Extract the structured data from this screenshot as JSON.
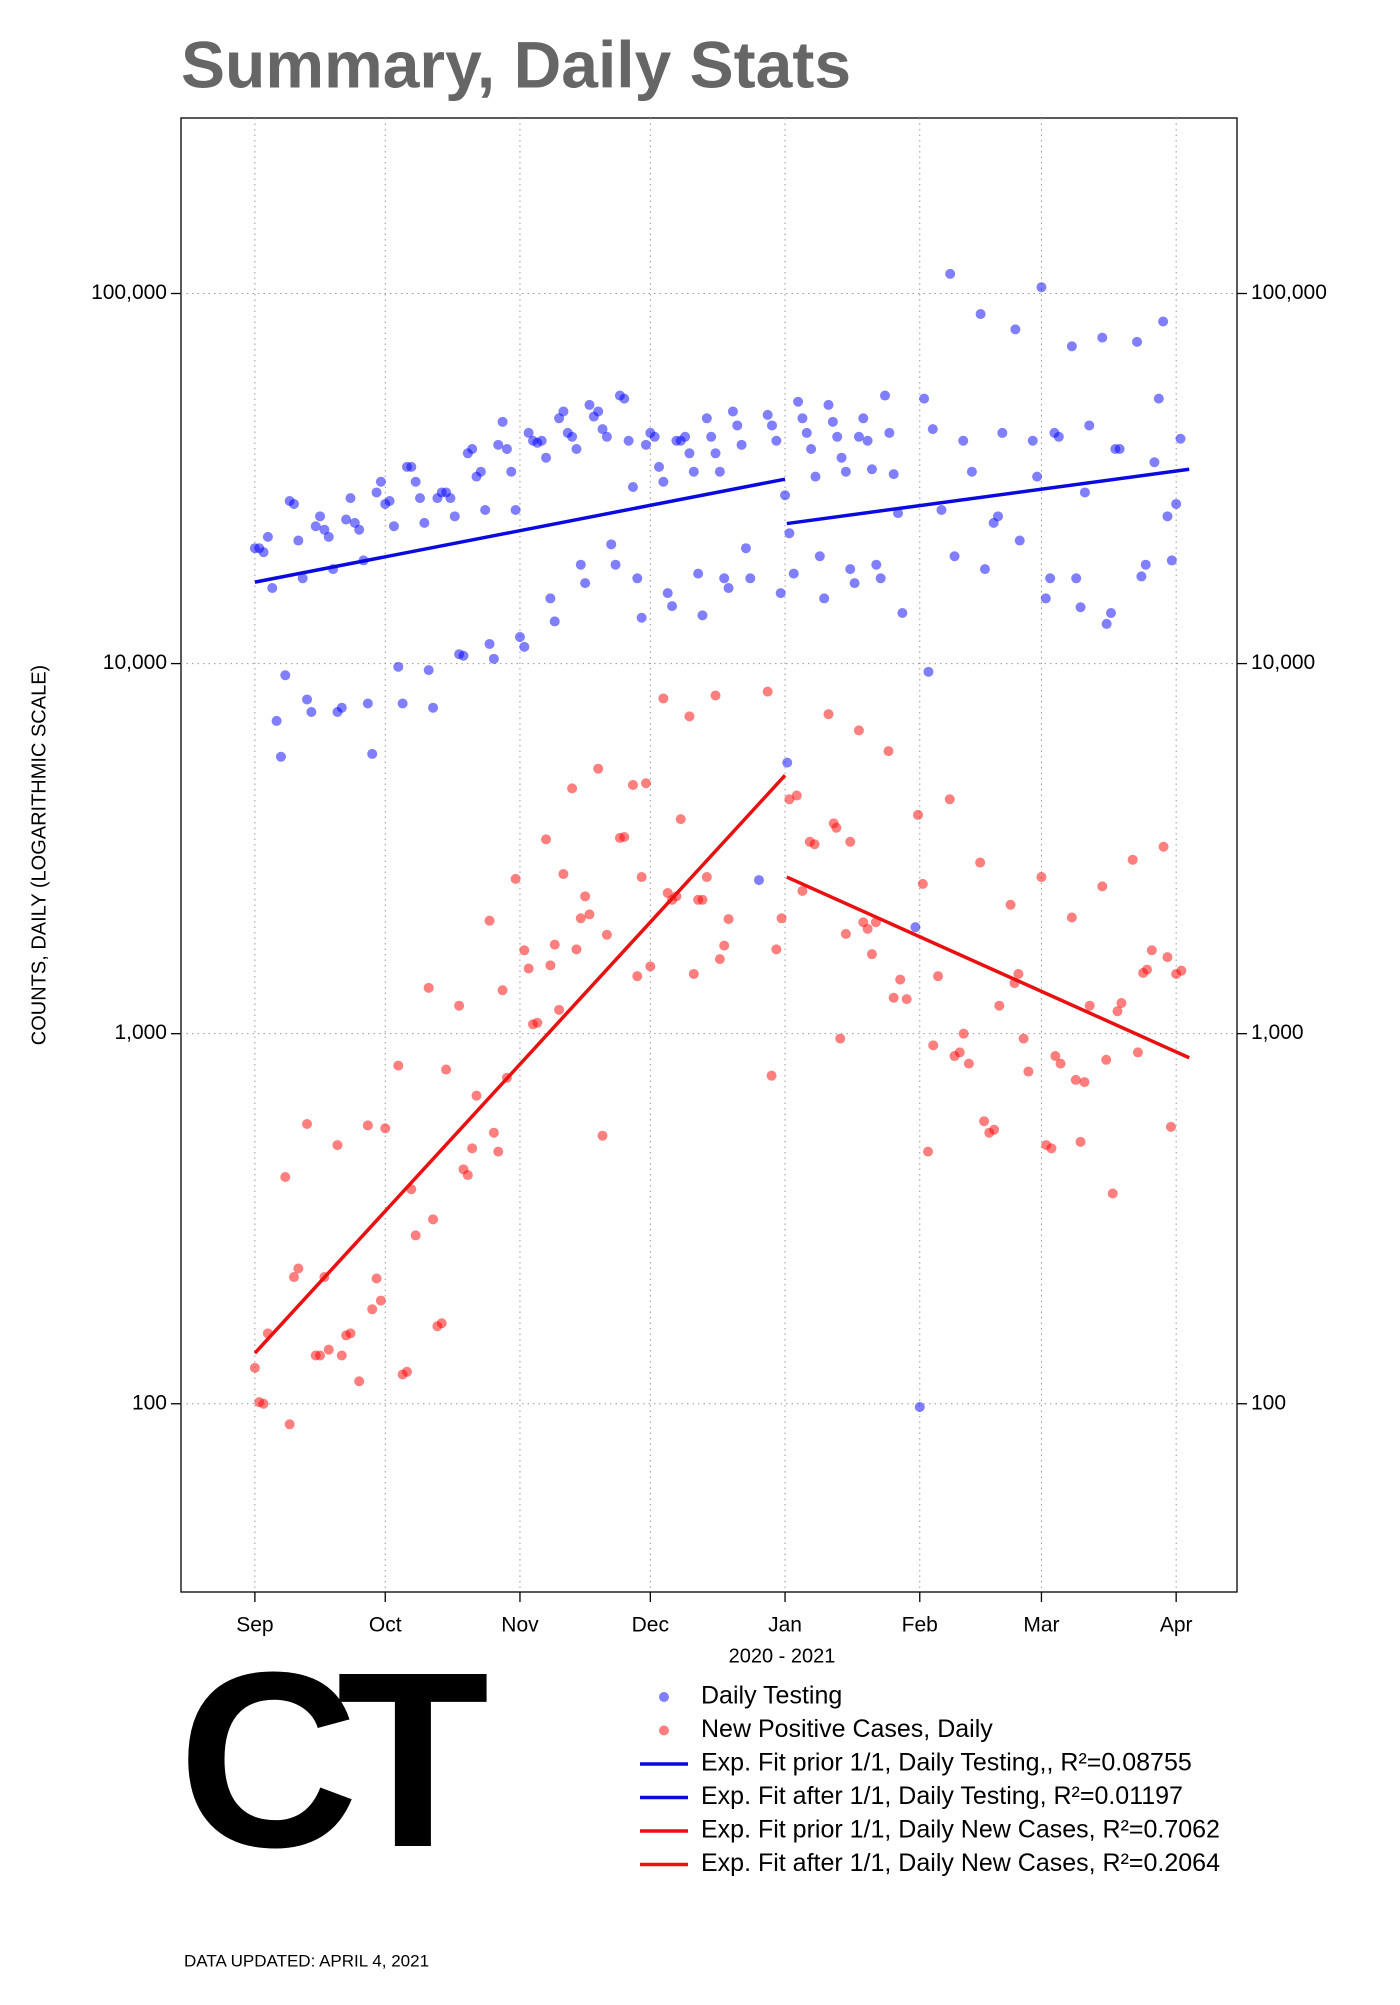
{
  "chart_data": {
    "type": "scatter",
    "title": "Summary, Daily Stats",
    "xlabel": "2020 - 2021",
    "ylabel": "COUNTS, DAILY (LOGARITHMIC SCALE)",
    "logo": "CT",
    "footer": "DATA UPDATED: APRIL 4, 2021",
    "ylog": true,
    "grid": true,
    "legend": "below",
    "xlim": [
      -17,
      226
    ],
    "ylim": [
      31,
      298000
    ],
    "xticks": [
      {
        "value": 0,
        "label": "Sep"
      },
      {
        "value": 30,
        "label": "Oct"
      },
      {
        "value": 61,
        "label": "Nov"
      },
      {
        "value": 91,
        "label": "Dec"
      },
      {
        "value": 122,
        "label": "Jan"
      },
      {
        "value": 153,
        "label": "Feb"
      },
      {
        "value": 181,
        "label": "Mar"
      },
      {
        "value": 212,
        "label": "Apr"
      }
    ],
    "yticks": [
      100,
      {
        "value": 1000,
        "label": "1,000"
      },
      {
        "value": 10000,
        "label": "10,000"
      },
      {
        "value": 100000,
        "label": "100,000"
      }
    ],
    "series": [
      {
        "name": "Daily Testing",
        "color": "#0000ff",
        "mode": "markers",
        "x": [
          0,
          1,
          2,
          3,
          4,
          5,
          6,
          7,
          8,
          9,
          10,
          11,
          12,
          13,
          14,
          15,
          16,
          17,
          18,
          19,
          20,
          21,
          22,
          23,
          24,
          25,
          26,
          27,
          28,
          29,
          30,
          31,
          32,
          33,
          34,
          35,
          36,
          37,
          38,
          39,
          40,
          41,
          42,
          43,
          44,
          45,
          46,
          47,
          48,
          49,
          50,
          51,
          52,
          53,
          54,
          55,
          56,
          57,
          58,
          59,
          60,
          61,
          62,
          63,
          64,
          65,
          66,
          67,
          68,
          69,
          70,
          71,
          72,
          73,
          74,
          75,
          76,
          77,
          78,
          79,
          80,
          81,
          82,
          83,
          84,
          85,
          86,
          87,
          88,
          89,
          90,
          91,
          92,
          93,
          94,
          95,
          96,
          97,
          98,
          99,
          100,
          101,
          102,
          103,
          104,
          105,
          106,
          107,
          108,
          109,
          110,
          111,
          112,
          113,
          114,
          116,
          118,
          119,
          120,
          121,
          122,
          122.5,
          123,
          124,
          125,
          126,
          127,
          128,
          129,
          130,
          131,
          132,
          133,
          134,
          135,
          136,
          137,
          138,
          139,
          140,
          141,
          142,
          143,
          144,
          145,
          146,
          147,
          148,
          149,
          152,
          153,
          154,
          155,
          156,
          158,
          160,
          161,
          163,
          165,
          167,
          168,
          170,
          171,
          172,
          175,
          176,
          179,
          180,
          181,
          182,
          183,
          184,
          185,
          188,
          189,
          190,
          191,
          192,
          195,
          196,
          197,
          198,
          199,
          203,
          204,
          205,
          207,
          208,
          209,
          210,
          211,
          212,
          213
        ],
        "values": [
          20500,
          20500,
          20000,
          22000,
          16000,
          7000,
          5600,
          9300,
          27500,
          27000,
          21500,
          17000,
          8000,
          7400,
          23500,
          25000,
          23000,
          22000,
          18000,
          7400,
          7600,
          24500,
          28000,
          24000,
          23000,
          19000,
          7800,
          5700,
          29000,
          31000,
          27000,
          27500,
          23500,
          9800,
          7800,
          34000,
          34000,
          31000,
          28000,
          24000,
          9600,
          7600,
          28000,
          29000,
          29000,
          28000,
          25000,
          10600,
          10500,
          37000,
          38000,
          32000,
          33000,
          26000,
          11300,
          10300,
          39000,
          45000,
          38000,
          33000,
          26000,
          11800,
          11100,
          42000,
          40000,
          39500,
          40000,
          36000,
          15000,
          13000,
          46000,
          48000,
          42000,
          41000,
          38000,
          18500,
          16500,
          50000,
          46500,
          48000,
          43000,
          41000,
          21000,
          18500,
          53000,
          52000,
          40000,
          30000,
          17000,
          13300,
          39000,
          42000,
          41000,
          34000,
          31000,
          15500,
          14300,
          40000,
          40000,
          41000,
          37000,
          33000,
          17500,
          13500,
          46000,
          41000,
          37000,
          33000,
          17000,
          16000,
          48000,
          44000,
          39000,
          20500,
          17000,
          2600,
          47000,
          44000,
          40000,
          15500,
          28500,
          5400,
          22500,
          17500,
          51000,
          46000,
          42000,
          38000,
          32000,
          19500,
          15000,
          50000,
          45000,
          41000,
          36000,
          33000,
          18000,
          16500,
          41000,
          46000,
          40000,
          33500,
          18500,
          17000,
          53000,
          42000,
          32500,
          25500,
          13700,
          1940,
          98,
          52000,
          9500,
          43000,
          26000,
          113000,
          19500,
          40000,
          33000,
          88000,
          18000,
          24000,
          25000,
          42000,
          80000,
          21500,
          40000,
          32000,
          104000,
          15000,
          17000,
          42000,
          41000,
          72000,
          17000,
          14200,
          29000,
          44000,
          76000,
          12800,
          13700,
          38000,
          38000,
          74000,
          17200,
          18500,
          35000,
          52000,
          84000,
          25000,
          19000,
          27000,
          40500
        ]
      },
      {
        "name": "New Positive Cases, Daily",
        "color": "#ff0000",
        "mode": "markers",
        "x": [
          0,
          1,
          2,
          3,
          7,
          8,
          9,
          10,
          12,
          14,
          15,
          16,
          17,
          19,
          20,
          21,
          22,
          24,
          26,
          27,
          28,
          29,
          30,
          33,
          34,
          35,
          36,
          37,
          40,
          41,
          42,
          43,
          44,
          47,
          48,
          49,
          50,
          51,
          54,
          55,
          56,
          57,
          58,
          60,
          62,
          63,
          64,
          65,
          67,
          68,
          69,
          70,
          71,
          73,
          74,
          75,
          76,
          77,
          79,
          80,
          81,
          84,
          85,
          87,
          88,
          89,
          90,
          91,
          94,
          95,
          96,
          97,
          98,
          100,
          101,
          102,
          103,
          104,
          106,
          107,
          108,
          109,
          118,
          118.9,
          120,
          121.2,
          123,
          124.7,
          126,
          127.7,
          128.8,
          132,
          133.2,
          133.8,
          134.7,
          136,
          137,
          139,
          140,
          141,
          142,
          142.9,
          145.8,
          147,
          148.5,
          150,
          152.6,
          153.7,
          154.9,
          156.1,
          157.2,
          159.9,
          161,
          162.2,
          163.1,
          164.3,
          166.9,
          167.8,
          169,
          170.1,
          171.3,
          173.9,
          174.8,
          175.7,
          176.9,
          178,
          181,
          182.1,
          183.3,
          184.2,
          185.4,
          188,
          188.9,
          190,
          190.9,
          192.1,
          195,
          195.9,
          197.4,
          198.5,
          199.4,
          202,
          203.2,
          204.4,
          205.3,
          206.4,
          209.1,
          210,
          210.8,
          212,
          213.2
        ],
        "values": [
          125,
          101,
          100,
          155,
          410,
          88,
          220,
          232,
          570,
          135,
          135,
          220,
          140,
          500,
          135,
          153,
          155,
          115,
          565,
          180,
          218,
          190,
          555,
          820,
          120,
          122,
          380,
          285,
          1330,
          315,
          162,
          165,
          800,
          1190,
          430,
          415,
          490,
          680,
          2020,
          540,
          480,
          1310,
          760,
          2620,
          1680,
          1500,
          1060,
          1070,
          3350,
          1530,
          1740,
          1160,
          2700,
          4600,
          1690,
          2050,
          2350,
          2100,
          5200,
          530,
          1850,
          3380,
          3400,
          4700,
          1430,
          2650,
          4750,
          1520,
          8050,
          2400,
          2300,
          2350,
          3800,
          7200,
          1450,
          2300,
          2300,
          2650,
          8200,
          1590,
          1730,
          2040,
          8400,
          770,
          1690,
          2050,
          4300,
          4400,
          2430,
          3300,
          3250,
          7300,
          3700,
          3600,
          970,
          1860,
          3300,
          6600,
          2000,
          1920,
          1640,
          2000,
          5800,
          1250,
          1400,
          1240,
          3900,
          2540,
          480,
          930,
          1430,
          4300,
          870,
          890,
          1000,
          830,
          2900,
          580,
          540,
          550,
          1190,
          2230,
          1370,
          1450,
          970,
          790,
          2650,
          500,
          490,
          870,
          830,
          2060,
          750,
          510,
          740,
          1190,
          2500,
          850,
          370,
          1150,
          1210,
          2950,
          890,
          1460,
          1490,
          1680,
          3200,
          1610,
          560,
          1450,
          1480
        ]
      },
      {
        "name": "Exp. Fit prior 1/1, Daily Testing,, R²=0.08755",
        "color": "#0a0ae0",
        "mode": "lines",
        "x": [
          0,
          122
        ],
        "values": [
          16600,
          31500
        ]
      },
      {
        "name": "Exp. Fit after 1/1, Daily Testing, R²=0.01197",
        "color": "#0a0ae0",
        "mode": "lines",
        "x": [
          122.4,
          215
        ],
        "values": [
          23900,
          33500
        ]
      },
      {
        "name": "Exp. Fit prior 1/1, Daily New Cases, R²=0.7062",
        "color": "#e81010",
        "mode": "lines",
        "x": [
          0,
          122
        ],
        "values": [
          137,
          4990
        ]
      },
      {
        "name": "Exp. Fit after 1/1, Daily New Cases, R²=0.2064",
        "color": "#e81010",
        "mode": "lines",
        "x": [
          122.4,
          215
        ],
        "values": [
          2650,
          861
        ]
      }
    ]
  }
}
